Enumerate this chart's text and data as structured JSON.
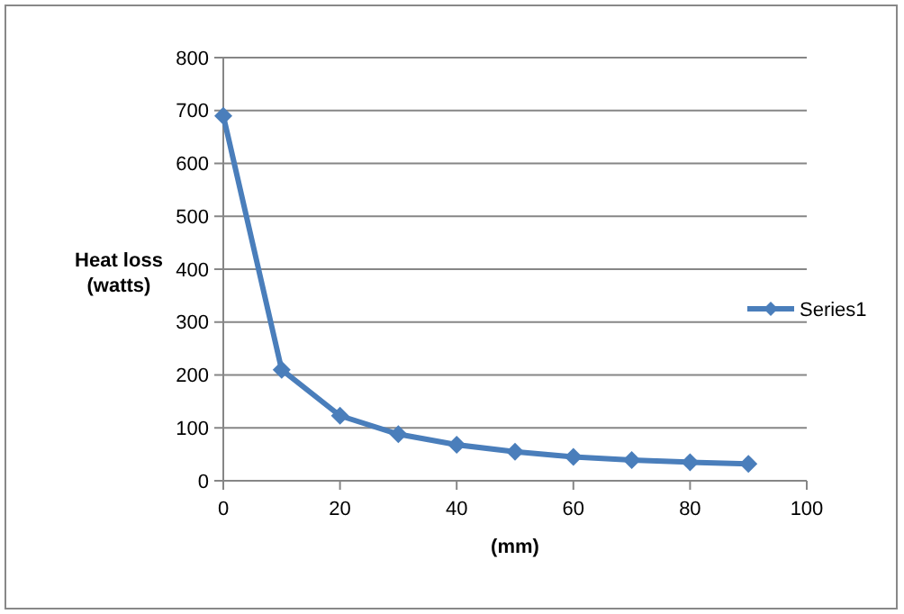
{
  "chart_data": {
    "type": "line",
    "xlabel": "(mm)",
    "ylabel": "Heat loss (watts)",
    "x": [
      0,
      10,
      20,
      30,
      40,
      50,
      60,
      70,
      80,
      90
    ],
    "series": [
      {
        "name": "Series1",
        "color": "#4a7ebb",
        "values": [
          690,
          210,
          123,
          88,
          68,
          55,
          45,
          39,
          35,
          32
        ]
      }
    ],
    "xlim": [
      0,
      100
    ],
    "xticks": [
      0,
      20,
      40,
      60,
      80,
      100
    ],
    "ylim": [
      0,
      800
    ],
    "yticks": [
      0,
      100,
      200,
      300,
      400,
      500,
      600,
      700,
      800
    ],
    "grid": "y",
    "legend": "right",
    "marker": "diamond",
    "line_style": "solid"
  }
}
